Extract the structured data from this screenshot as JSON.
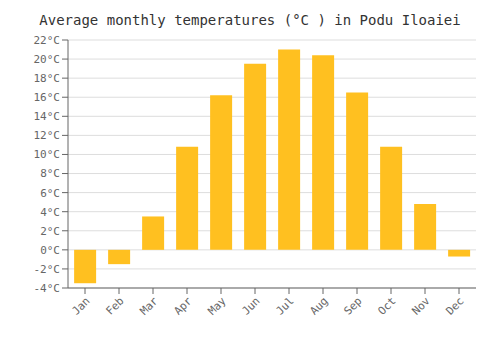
{
  "chart_data": {
    "type": "bar",
    "title": "Average monthly temperatures (°C ) in Podu Iloaiei",
    "categories": [
      "Jan",
      "Feb",
      "Mar",
      "Apr",
      "May",
      "Jun",
      "Jul",
      "Aug",
      "Sep",
      "Oct",
      "Nov",
      "Dec"
    ],
    "values": [
      -3.5,
      -1.5,
      3.5,
      10.8,
      16.2,
      19.5,
      21.0,
      20.4,
      16.5,
      10.8,
      4.8,
      -0.7
    ],
    "color": "#FFC020",
    "ylim": [
      -4,
      22
    ],
    "yticks": [
      {
        "value": -4,
        "label": "-4°C"
      },
      {
        "value": -2,
        "label": "-2°C"
      },
      {
        "value": 0,
        "label": "0°C"
      },
      {
        "value": 2,
        "label": "2°C"
      },
      {
        "value": 4,
        "label": "4°C"
      },
      {
        "value": 6,
        "label": "6°C"
      },
      {
        "value": 8,
        "label": "8°C"
      },
      {
        "value": 10,
        "label": "10°C"
      },
      {
        "value": 12,
        "label": "12°C"
      },
      {
        "value": 14,
        "label": "14°C"
      },
      {
        "value": 16,
        "label": "16°C"
      },
      {
        "value": 18,
        "label": "18°C"
      },
      {
        "value": 20,
        "label": "20°C"
      },
      {
        "value": 22,
        "label": "22°C"
      }
    ],
    "grid": true
  }
}
